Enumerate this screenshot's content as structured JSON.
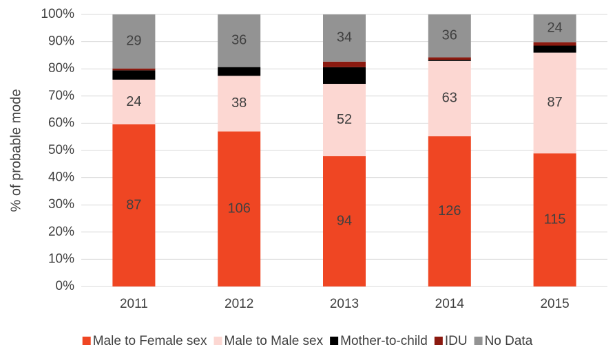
{
  "chart_data": {
    "type": "stacked_bar_100",
    "y_label": "% of probable mode",
    "categories": [
      "2011",
      "2012",
      "2013",
      "2014",
      "2015"
    ],
    "series": [
      {
        "name": "Male to Female sex",
        "color": "#ef4623",
        "values": [
          87,
          106,
          94,
          126,
          115
        ],
        "labeled": true
      },
      {
        "name": "Male to Male sex",
        "color": "#fcd7d2",
        "values": [
          24,
          38,
          52,
          63,
          87
        ],
        "labeled": true
      },
      {
        "name": "Mother-to-child",
        "color": "#000000",
        "values": [
          5,
          6,
          12,
          1,
          6
        ],
        "labeled": false
      },
      {
        "name": "IDU",
        "color": "#8b1a10",
        "values": [
          1,
          0,
          4,
          2,
          3
        ],
        "labeled": false
      },
      {
        "name": "No Data",
        "color": "#939393",
        "values": [
          29,
          36,
          34,
          36,
          24
        ],
        "labeled": true
      }
    ],
    "ylim": [
      0,
      100
    ],
    "yticks": [
      {
        "value": 0,
        "label": "0%"
      },
      {
        "value": 10,
        "label": "10%"
      },
      {
        "value": 20,
        "label": "20%"
      },
      {
        "value": 30,
        "label": "30%"
      },
      {
        "value": 40,
        "label": "40%"
      },
      {
        "value": 50,
        "label": "50%"
      },
      {
        "value": 60,
        "label": "60%"
      },
      {
        "value": 70,
        "label": "70%"
      },
      {
        "value": 80,
        "label": "80%"
      },
      {
        "value": 90,
        "label": "90%"
      },
      {
        "value": 100,
        "label": "100%"
      }
    ],
    "grid": true,
    "legend": "bottom"
  }
}
